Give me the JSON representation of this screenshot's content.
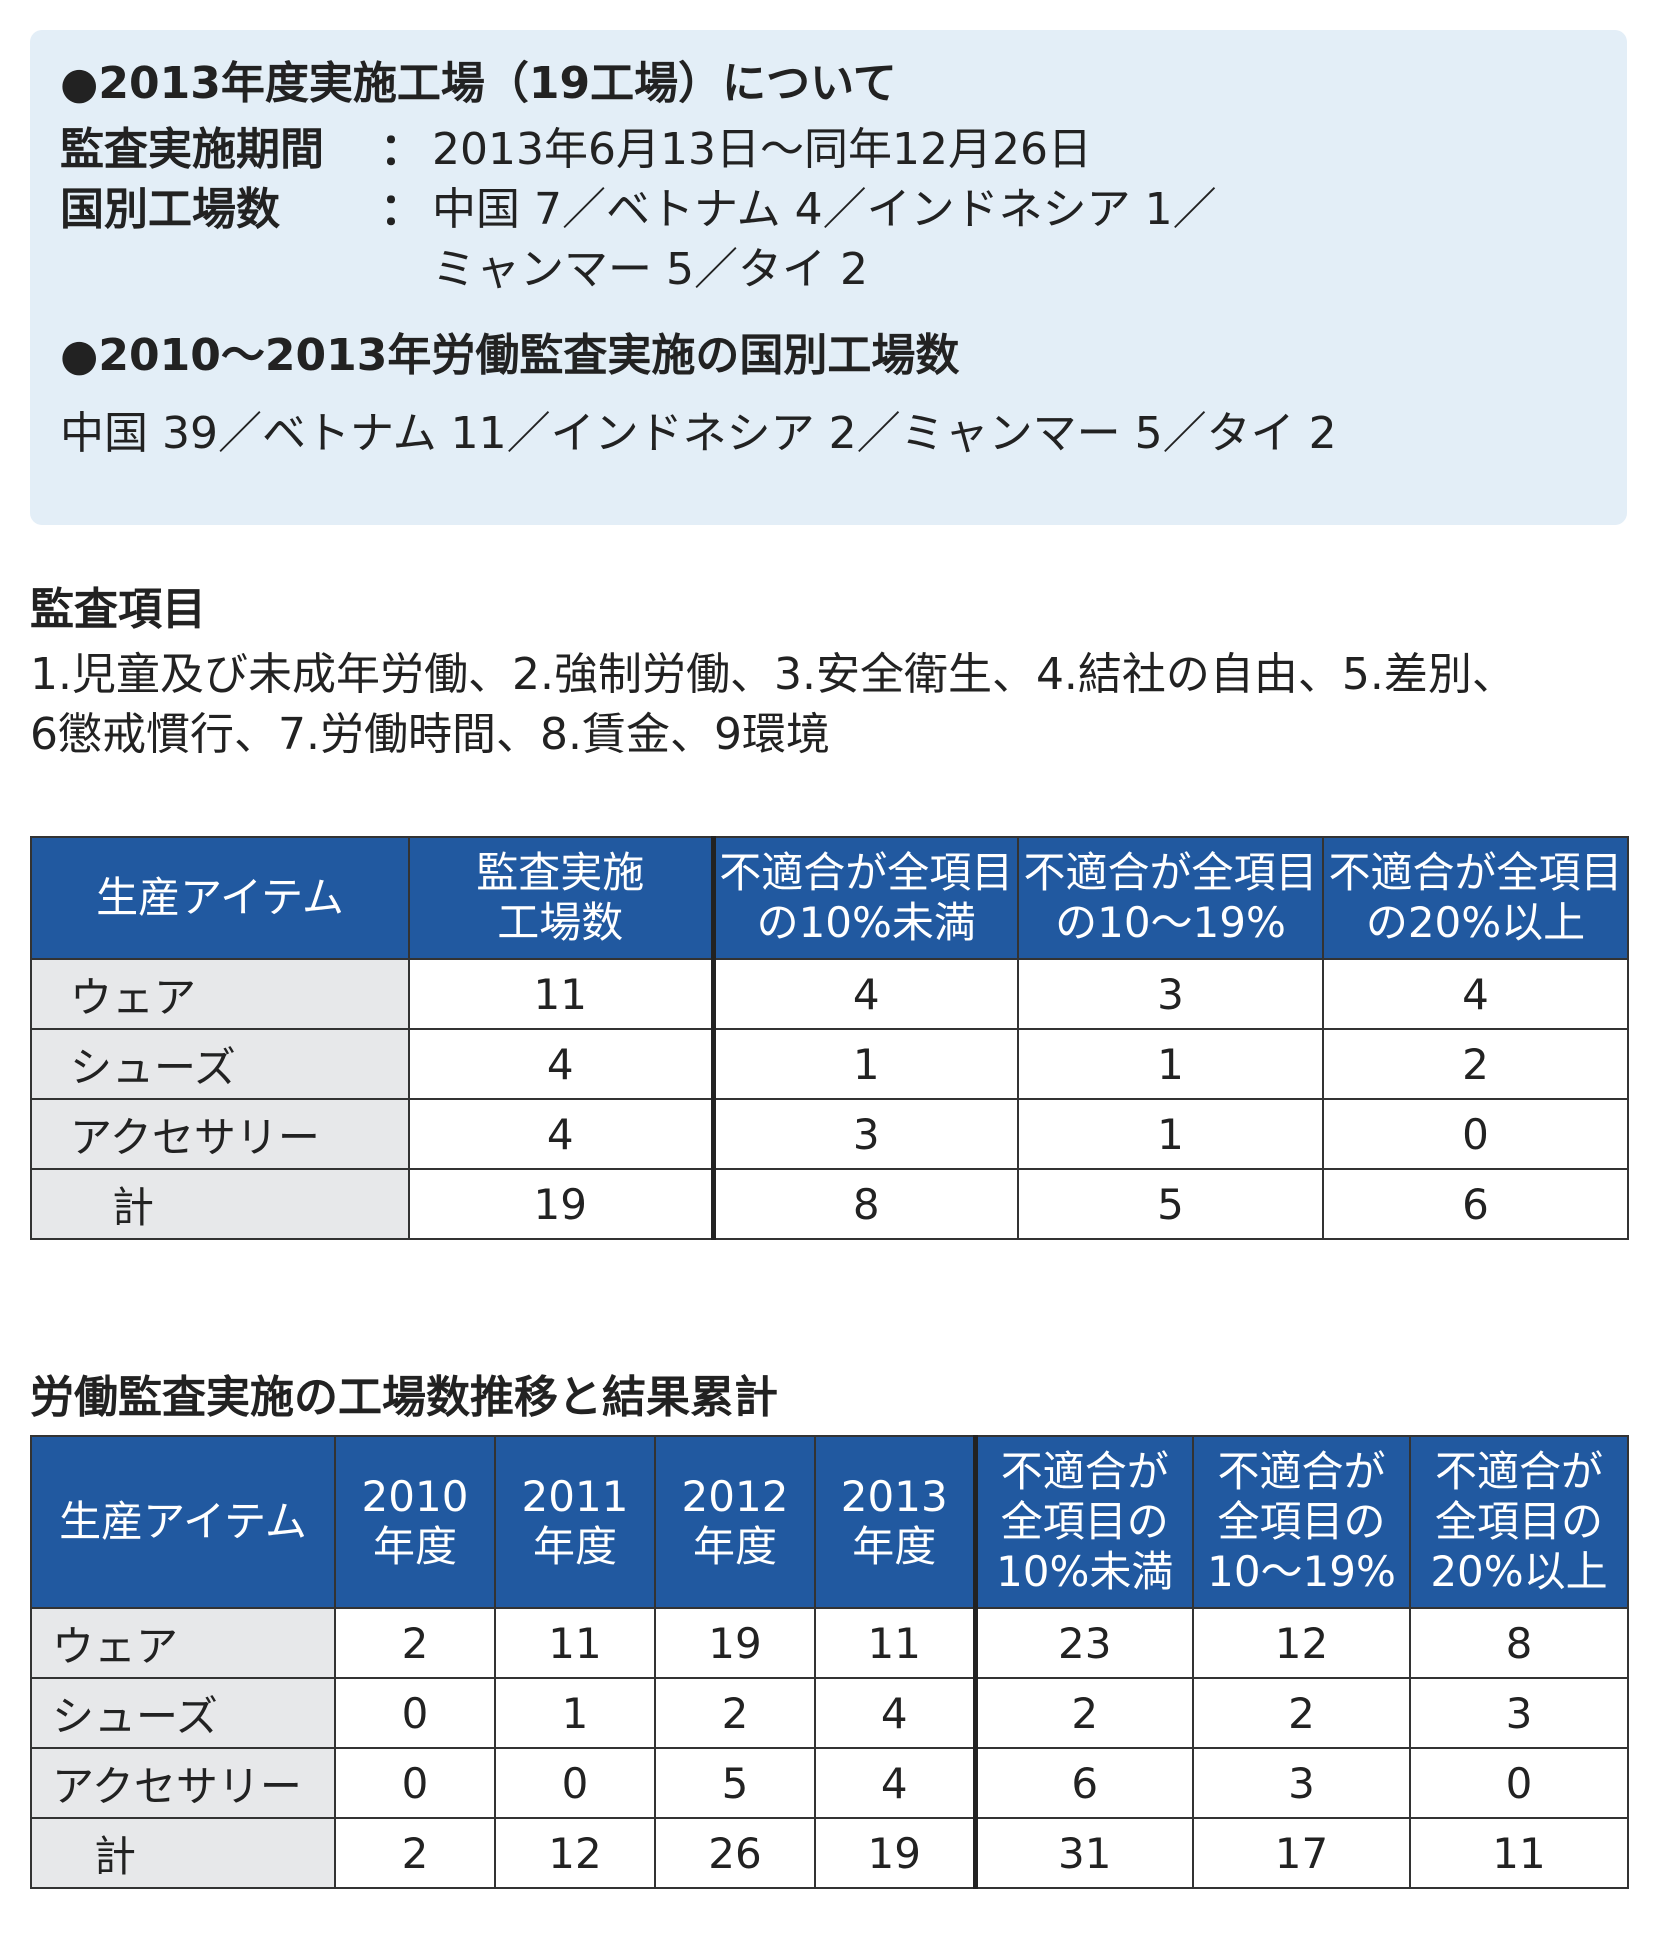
{
  "info_box": {
    "heading_2013": "●2013年度実施工場（19工場）について",
    "period_label": "監査実施期間",
    "period_colon": "：",
    "period_value": "2013年6月13日～同年12月26日",
    "countries_label": "国別工場数",
    "countries_colon": "：",
    "countries_value_line1": "中国 7／ベトナム 4／インドネシア 1／",
    "countries_value_line2": "ミャンマー 5／タイ 2",
    "heading_2010_2013": "●2010～2013年労働監査実施の国別工場数",
    "countries_total": "中国 39／ベトナム 11／インドネシア 2／ミャンマー 5／タイ 2"
  },
  "audit_items": {
    "title": "監査項目",
    "line1": "1.児童及び未成年労働、2.強制労働、3.安全衛生、4.結社の自由、5.差別、",
    "line2": "6懲戒慣行、7.労働時間、8.賃金、9環境"
  },
  "table1": {
    "headers": {
      "item": "生産アイテム",
      "factories_l1": "監査実施",
      "factories_l2": "工場数",
      "under10_l1": "不適合が全項目",
      "under10_l2": "の10%未満",
      "range10_19_l1": "不適合が全項目",
      "range10_19_l2": "の10～19%",
      "over20_l1": "不適合が全項目",
      "over20_l2": "の20%以上"
    },
    "rows": [
      {
        "item": "ウェア",
        "factories": "11",
        "under10": "4",
        "range10_19": "3",
        "over20": "4"
      },
      {
        "item": "シューズ",
        "factories": "4",
        "under10": "1",
        "range10_19": "1",
        "over20": "2"
      },
      {
        "item": "アクセサリー",
        "factories": "4",
        "under10": "3",
        "range10_19": "1",
        "over20": "0"
      },
      {
        "item": "計",
        "factories": "19",
        "under10": "8",
        "range10_19": "5",
        "over20": "6"
      }
    ]
  },
  "table2": {
    "title": "労働監査実施の工場数推移と結果累計",
    "headers": {
      "item": "生産アイテム",
      "y2010_l1": "2010",
      "y2010_l2": "年度",
      "y2011_l1": "2011",
      "y2011_l2": "年度",
      "y2012_l1": "2012",
      "y2012_l2": "年度",
      "y2013_l1": "2013",
      "y2013_l2": "年度",
      "under10_l1": "不適合が",
      "under10_l2": "全項目の",
      "under10_l3": "10%未満",
      "range10_19_l1": "不適合が",
      "range10_19_l2": "全項目の",
      "range10_19_l3": "10～19%",
      "over20_l1": "不適合が",
      "over20_l2": "全項目の",
      "over20_l3": "20%以上"
    },
    "rows": [
      {
        "item": "ウェア",
        "y2010": "2",
        "y2011": "11",
        "y2012": "19",
        "y2013": "11",
        "under10": "23",
        "range10_19": "12",
        "over20": "8"
      },
      {
        "item": "シューズ",
        "y2010": "0",
        "y2011": "1",
        "y2012": "2",
        "y2013": "4",
        "under10": "2",
        "range10_19": "2",
        "over20": "3"
      },
      {
        "item": "アクセサリー",
        "y2010": "0",
        "y2011": "0",
        "y2012": "5",
        "y2013": "4",
        "under10": "6",
        "range10_19": "3",
        "over20": "0"
      },
      {
        "item": "計",
        "y2010": "2",
        "y2011": "12",
        "y2012": "26",
        "y2013": "19",
        "under10": "31",
        "range10_19": "17",
        "over20": "11"
      }
    ]
  }
}
